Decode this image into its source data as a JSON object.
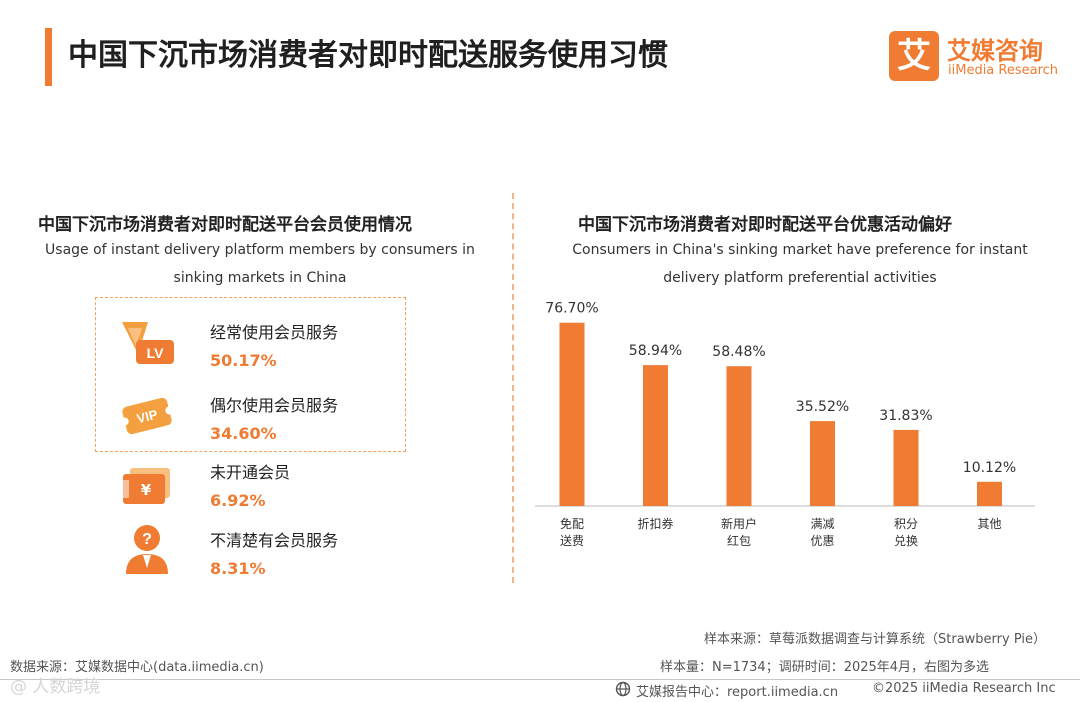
{
  "header": {
    "title": "中国下沉市场消费者对即时配送服务使用习惯",
    "logo_mark": "艾",
    "logo_cn": "艾媒咨询",
    "logo_en": "iiMedia Research"
  },
  "left_panel": {
    "title": "中国下沉市场消费者对即时配送平台会员使用情况",
    "subtitle_line1": "Usage of instant delivery platform members by consumers in",
    "subtitle_line2": "sinking markets in China",
    "items": [
      {
        "label": "经常使用会员服务",
        "percent": "50.17%",
        "icon": "vip-level-icon",
        "icon_text": "LV"
      },
      {
        "label": "偶尔使用会员服务",
        "percent": "34.60%",
        "icon": "vip-ticket-icon",
        "icon_text": "VIP"
      },
      {
        "label": "未开通会员",
        "percent": "6.92%",
        "icon": "yuan-card-icon",
        "icon_text": "¥"
      },
      {
        "label": "不清楚有会员服务",
        "percent": "8.31%",
        "icon": "question-person-icon",
        "icon_text": "?"
      }
    ]
  },
  "colors": {
    "accent": "#f07b32",
    "bar": "#f07b32",
    "text": "#222222"
  },
  "chart_data": {
    "type": "bar",
    "title": "中国下沉市场消费者对即时配送平台优惠活动偏好",
    "subtitle_line1": "Consumers in China's sinking market have preference for instant",
    "subtitle_line2": "delivery platform preferential activities",
    "categories": [
      [
        "免配",
        "送费"
      ],
      [
        "折扣券"
      ],
      [
        "新用户",
        "红包"
      ],
      [
        "满减",
        "优惠"
      ],
      [
        "积分",
        "兑换"
      ],
      [
        "其他"
      ]
    ],
    "values": [
      76.7,
      58.94,
      58.48,
      35.52,
      31.83,
      10.12
    ],
    "value_labels": [
      "76.70%",
      "58.94%",
      "58.48%",
      "35.52%",
      "31.83%",
      "10.12%"
    ],
    "ylim": [
      0,
      100
    ],
    "unit": "%"
  },
  "footer": {
    "sample_source": "样本来源：草莓派数据调查与计算系统（Strawberry Pie）",
    "sample_size": "样本量：N=1734；调研时间：2025年4月，右图为多选",
    "data_source": "数据来源：艾媒数据中心(data.iimedia.cn)",
    "report_center": "艾媒报告中心：report.iimedia.cn",
    "copyright": "©2025  iiMedia Research  Inc",
    "watermark": "@ 人数跨境"
  }
}
